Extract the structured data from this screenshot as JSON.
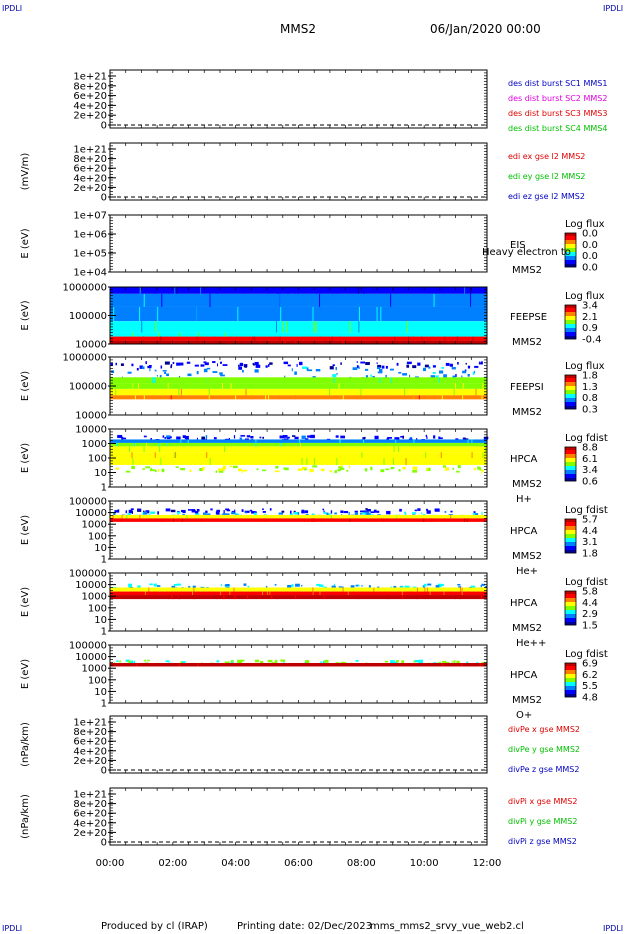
{
  "header": {
    "corner_label": "IPDLI",
    "spacecraft": "MMS2",
    "date": "06/Jan/2020 00:00"
  },
  "footer": {
    "produced_by": "Produced by cl (IRAP)",
    "printing_date": "Printing date: 02/Dec/2023",
    "script_name": "mms_mms2_srvy_vue_web2.cl"
  },
  "colors": {
    "red": "#e00000",
    "green": "#00c000",
    "blue": "#0000c0",
    "magenta": "#e000e0",
    "rainbow": [
      "#000090",
      "#0000ff",
      "#0080ff",
      "#00ffff",
      "#80ff00",
      "#ffff00",
      "#ff8000",
      "#ff0000",
      "#c00000"
    ]
  },
  "chart_data": {
    "type": "heatmap",
    "xaxis": {
      "ticks": [
        "00:00",
        "02:00",
        "04:00",
        "06:00",
        "08:00",
        "10:00",
        "12:00"
      ],
      "xlim_hours": [
        0,
        12
      ]
    },
    "panels": [
      {
        "kind": "line",
        "ylabel": "",
        "ticks": [
          "1e+21",
          "8e+20",
          "6e+20",
          "4e+20",
          "2e+20",
          "0"
        ],
        "legend": [
          {
            "text": "des dist burst SC1 MMS1",
            "color": "#0000c0"
          },
          {
            "text": "des dist burst SC2 MMS2",
            "color": "#e000e0"
          },
          {
            "text": "des dist burst SC3 MMS3",
            "color": "#e00000"
          },
          {
            "text": "des dist burst SC4 MMS4",
            "color": "#00c000"
          }
        ]
      },
      {
        "kind": "line",
        "ylabel": "(mV/m)",
        "ticks": [
          "1e+21",
          "8e+20",
          "6e+20",
          "4e+20",
          "2e+20",
          "0"
        ],
        "legend": [
          {
            "text": "edi ex gse l2 MMS2",
            "color": "#e00000"
          },
          {
            "text": "edi ey gse l2 MMS2",
            "color": "#00c000"
          },
          {
            "text": "edi ez gse l2 MMS2",
            "color": "#0000c0"
          }
        ]
      },
      {
        "kind": "spec",
        "ylabel": "E (eV)",
        "ticks": [
          "1e+07",
          "1e+06",
          "1e+05",
          "1e+04"
        ],
        "instrument": "EIS",
        "extra_label": "Heavy electron to",
        "sc": "MMS2",
        "species": "",
        "cbar_title": "Log flux",
        "cbar_ticks": [
          "0.0",
          "0.0",
          "0.0",
          "0.0"
        ],
        "bands": []
      },
      {
        "kind": "spec",
        "ylabel": "E (eV)",
        "ticks": [
          "1000000",
          "100000",
          "10000"
        ],
        "instrument": "FEEPSE",
        "extra_label": "",
        "sc": "MMS2",
        "species": "",
        "cbar_title": "Log flux",
        "cbar_ticks": [
          "3.4",
          "2.1",
          "0.9",
          "-0.4"
        ],
        "bands": [
          {
            "from": 0.0,
            "to": 0.12,
            "level": 0.12
          },
          {
            "from": 0.12,
            "to": 0.35,
            "level": 0.22
          },
          {
            "from": 0.35,
            "to": 0.6,
            "level": 0.3
          },
          {
            "from": 0.6,
            "to": 0.8,
            "level": 0.38
          },
          {
            "from": 0.8,
            "to": 0.87,
            "level": 0.42
          },
          {
            "from": 0.87,
            "to": 0.94,
            "level": 0.92
          },
          {
            "from": 0.94,
            "to": 1.0,
            "level": 1.0
          }
        ]
      },
      {
        "kind": "spec",
        "ylabel": "E (eV)",
        "ticks": [
          "1000000",
          "100000",
          "10000"
        ],
        "instrument": "FEEPSI",
        "extra_label": "",
        "sc": "MMS2",
        "species": "",
        "cbar_title": "Log flux",
        "cbar_ticks": [
          "1.8",
          "1.3",
          "0.8",
          "0.3"
        ],
        "bands": [
          {
            "from": 0.07,
            "to": 0.16,
            "level": 0.1,
            "sparse": true
          },
          {
            "from": 0.16,
            "to": 0.35,
            "level": 0.25,
            "sparse": true
          },
          {
            "from": 0.35,
            "to": 0.45,
            "level": 0.45
          },
          {
            "from": 0.45,
            "to": 0.55,
            "level": 0.55
          },
          {
            "from": 0.55,
            "to": 0.66,
            "level": 0.62
          },
          {
            "from": 0.66,
            "to": 0.73,
            "level": 0.72
          }
        ]
      },
      {
        "kind": "spec",
        "ylabel": "E (eV)",
        "ticks": [
          "10000",
          "1000",
          "100",
          "10",
          "1"
        ],
        "instrument": "HPCA",
        "extra_label": "",
        "sc": "MMS2",
        "species": "H+",
        "cbar_title": "Log fdist",
        "cbar_ticks": [
          "8.8",
          "6.1",
          "3.4",
          "0.6"
        ],
        "bands": [
          {
            "from": 0.1,
            "to": 0.18,
            "level": 0.12,
            "sparse": true
          },
          {
            "from": 0.18,
            "to": 0.24,
            "level": 0.3
          },
          {
            "from": 0.24,
            "to": 0.3,
            "level": 0.48
          },
          {
            "from": 0.3,
            "to": 0.4,
            "level": 0.6
          },
          {
            "from": 0.4,
            "to": 0.5,
            "level": 0.65
          },
          {
            "from": 0.5,
            "to": 0.62,
            "level": 0.6
          },
          {
            "from": 0.62,
            "to": 0.72,
            "level": 0.55,
            "sparse": true
          }
        ]
      },
      {
        "kind": "spec",
        "ylabel": "E (eV)",
        "ticks": [
          "100000",
          "10000",
          "1000",
          "100",
          "10",
          "1"
        ],
        "instrument": "HPCA",
        "extra_label": "",
        "sc": "MMS2",
        "species": "He+",
        "cbar_title": "Log fdist",
        "cbar_ticks": [
          "5.7",
          "4.4",
          "3.1",
          "1.8"
        ],
        "bands": [
          {
            "from": 0.12,
            "to": 0.18,
            "level": 0.12,
            "sparse": true
          },
          {
            "from": 0.18,
            "to": 0.24,
            "level": 0.3,
            "sparse": true
          },
          {
            "from": 0.24,
            "to": 0.3,
            "level": 0.62
          },
          {
            "from": 0.3,
            "to": 0.36,
            "level": 0.9
          }
        ]
      },
      {
        "kind": "spec",
        "ylabel": "E (eV)",
        "ticks": [
          "100000",
          "10000",
          "1000",
          "100",
          "10",
          "1"
        ],
        "instrument": "HPCA",
        "extra_label": "",
        "sc": "MMS2",
        "species": "He++",
        "cbar_title": "Log fdist",
        "cbar_ticks": [
          "5.8",
          "4.4",
          "2.9",
          "1.5"
        ],
        "bands": [
          {
            "from": 0.18,
            "to": 0.25,
            "level": 0.3,
            "sparse": true
          },
          {
            "from": 0.25,
            "to": 0.32,
            "level": 0.68
          },
          {
            "from": 0.32,
            "to": 0.38,
            "level": 0.82
          },
          {
            "from": 0.38,
            "to": 0.45,
            "level": 0.95
          }
        ]
      },
      {
        "kind": "spec",
        "ylabel": "E (eV)",
        "ticks": [
          "100000",
          "10000",
          "1000",
          "100",
          "10",
          "1"
        ],
        "instrument": "HPCA",
        "extra_label": "",
        "sc": "MMS2",
        "species": "O+",
        "cbar_title": "Log fdist",
        "cbar_ticks": [
          "6.9",
          "6.2",
          "5.5",
          "4.8"
        ],
        "bands": [
          {
            "from": 0.25,
            "to": 0.31,
            "level": 0.45,
            "sparse": true
          },
          {
            "from": 0.31,
            "to": 0.37,
            "level": 0.95
          }
        ]
      },
      {
        "kind": "line",
        "ylabel": "(nPa/km)",
        "ticks": [
          "1e+21",
          "8e+20",
          "6e+20",
          "4e+20",
          "2e+20",
          "0"
        ],
        "legend": [
          {
            "text": "divPe x gse MMS2",
            "color": "#e00000"
          },
          {
            "text": "divPe y gse MMS2",
            "color": "#00c000"
          },
          {
            "text": "divPe z gse MMS2",
            "color": "#0000c0"
          }
        ]
      },
      {
        "kind": "line",
        "ylabel": "(nPa/km)",
        "ticks": [
          "1e+21",
          "8e+20",
          "6e+20",
          "4e+20",
          "2e+20",
          "0"
        ],
        "legend": [
          {
            "text": "divPi x gse MMS2",
            "color": "#e00000"
          },
          {
            "text": "divPi y gse MMS2",
            "color": "#00c000"
          },
          {
            "text": "divPi z gse MMS2",
            "color": "#0000c0"
          }
        ]
      }
    ]
  }
}
